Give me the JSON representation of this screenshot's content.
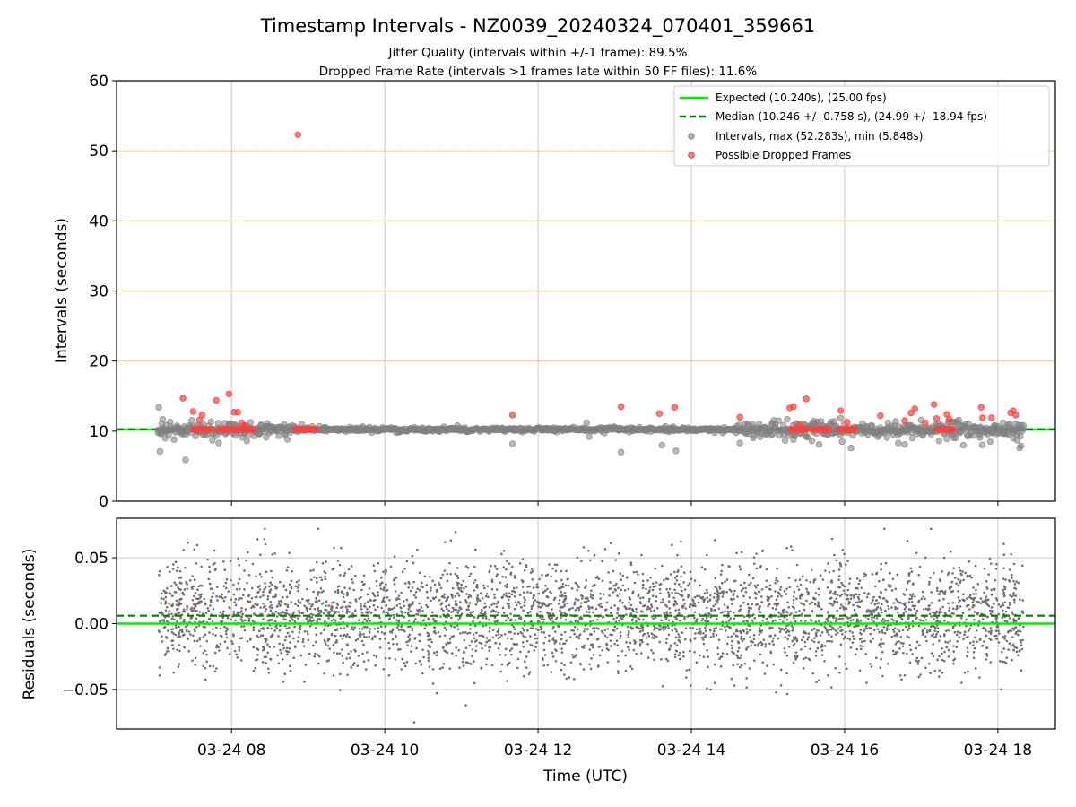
{
  "chart_data": {
    "type": "scatter",
    "title": "Timestamp Intervals - NZ0039_20240324_070401_359661",
    "subtitle_lines": [
      "Jitter Quality (intervals within +/-1 frame): 89.5%",
      "Dropped Frame Rate (intervals >1 frames late within 50 FF files): 11.6%"
    ],
    "xlabel": "Time (UTC)",
    "xlim": [
      "2024-03-24T06:30:00",
      "2024-03-24T18:45:00"
    ],
    "x_ticks": [
      {
        "value": "2024-03-24T08:00:00",
        "label": "03-24 08"
      },
      {
        "value": "2024-03-24T10:00:00",
        "label": "03-24 10"
      },
      {
        "value": "2024-03-24T12:00:00",
        "label": "03-24 12"
      },
      {
        "value": "2024-03-24T14:00:00",
        "label": "03-24 14"
      },
      {
        "value": "2024-03-24T16:00:00",
        "label": "03-24 16"
      },
      {
        "value": "2024-03-24T18:00:00",
        "label": "03-24 18"
      }
    ],
    "top_panel": {
      "ylabel": "Intervals (seconds)",
      "ylim": [
        0,
        60
      ],
      "y_ticks": [
        "0",
        "10",
        "20",
        "30",
        "40",
        "50",
        "60"
      ],
      "horizontal_grid_lines": [
        20,
        30,
        40,
        50
      ],
      "grid_color": "#ffd27f",
      "vertical_grid": true,
      "legend_position": "top-right",
      "legend": [
        {
          "label": "Expected (10.240s), (25.00 fps)",
          "style": "line",
          "color": "#00ee00"
        },
        {
          "label": "Median (10.246 +/- 0.758 s), (24.99 +/- 18.94 fps)",
          "style": "dashed",
          "color": "#008000"
        },
        {
          "label": "Intervals, max (52.283s), min (5.848s)",
          "style": "marker",
          "color": "#808080"
        },
        {
          "label": "Possible Dropped Frames",
          "style": "marker",
          "color": "#ff4040"
        }
      ],
      "expected": 10.24,
      "median": 10.246,
      "intervals_outliers": [
        [
          "2024-03-24T07:03:00",
          13.4
        ],
        [
          "2024-03-24T07:04:00",
          7.1
        ],
        [
          "2024-03-24T07:06:00",
          11.7
        ],
        [
          "2024-03-24T07:08:00",
          9.0
        ],
        [
          "2024-03-24T07:12:00",
          11.3
        ],
        [
          "2024-03-24T07:15:00",
          8.8
        ],
        [
          "2024-03-24T07:21:00",
          9.6
        ],
        [
          "2024-03-24T07:24:00",
          5.9
        ],
        [
          "2024-03-24T07:32:00",
          9.3
        ],
        [
          "2024-03-24T07:38:00",
          11.0
        ],
        [
          "2024-03-24T07:45:00",
          8.7
        ],
        [
          "2024-03-24T07:50:00",
          8.3
        ],
        [
          "2024-03-24T07:58:00",
          10.9
        ],
        [
          "2024-03-24T08:03:00",
          9.4
        ],
        [
          "2024-03-24T08:12:00",
          8.6
        ],
        [
          "2024-03-24T08:22:00",
          9.6
        ],
        [
          "2024-03-24T08:28:00",
          11.1
        ],
        [
          "2024-03-24T08:42:00",
          9.5
        ],
        [
          "2024-03-24T08:55:00",
          11.0
        ],
        [
          "2024-03-24T11:40:00",
          8.2
        ],
        [
          "2024-03-24T12:38:00",
          11.2
        ],
        [
          "2024-03-24T12:40:00",
          9.2
        ],
        [
          "2024-03-24T13:05:00",
          7.0
        ],
        [
          "2024-03-24T13:37:00",
          8.0
        ],
        [
          "2024-03-24T13:48:00",
          7.2
        ],
        [
          "2024-03-24T14:38:00",
          8.3
        ],
        [
          "2024-03-24T14:48:00",
          11.0
        ],
        [
          "2024-03-24T14:54:00",
          9.2
        ],
        [
          "2024-03-24T15:03:00",
          10.9
        ],
        [
          "2024-03-24T15:15:00",
          11.7
        ],
        [
          "2024-03-24T15:20:00",
          8.8
        ],
        [
          "2024-03-24T15:35:00",
          11.2
        ],
        [
          "2024-03-24T15:40:00",
          8.1
        ],
        [
          "2024-03-24T15:45:00",
          9.6
        ],
        [
          "2024-03-24T15:52:00",
          11.4
        ],
        [
          "2024-03-24T15:58:00",
          8.5
        ],
        [
          "2024-03-24T16:05:00",
          7.6
        ],
        [
          "2024-03-24T16:14:00",
          11.1
        ],
        [
          "2024-03-24T16:26:00",
          9.2
        ],
        [
          "2024-03-24T16:34:00",
          11.2
        ],
        [
          "2024-03-24T16:42:00",
          8.3
        ],
        [
          "2024-03-24T16:47:00",
          8.1
        ],
        [
          "2024-03-24T16:53:00",
          9.0
        ],
        [
          "2024-03-24T17:00:00",
          11.6
        ],
        [
          "2024-03-24T17:14:00",
          8.6
        ],
        [
          "2024-03-24T17:20:00",
          8.9
        ],
        [
          "2024-03-24T17:28:00",
          11.4
        ],
        [
          "2024-03-24T17:33:00",
          8.0
        ],
        [
          "2024-03-24T17:46:00",
          9.1
        ],
        [
          "2024-03-24T17:54:00",
          8.5
        ],
        [
          "2024-03-24T18:04:00",
          11.2
        ],
        [
          "2024-03-24T18:12:00",
          9.0
        ],
        [
          "2024-03-24T18:15:00",
          8.7
        ],
        [
          "2024-03-24T18:17:00",
          7.6
        ],
        [
          "2024-03-24T18:18:00",
          7.9
        ],
        [
          "2024-03-24T18:20:00",
          10.8
        ]
      ],
      "intervals_cluster_ranges": [
        {
          "start": "2024-03-24T07:02:00",
          "end": "2024-03-24T08:50:00",
          "spread": 1.2
        },
        {
          "start": "2024-03-24T08:50:00",
          "end": "2024-03-24T14:35:00",
          "spread": 0.35
        },
        {
          "start": "2024-03-24T14:35:00",
          "end": "2024-03-24T18:20:00",
          "spread": 1.3
        }
      ],
      "possible_dropped_frames": [
        [
          "2024-03-24T07:22:00",
          14.7
        ],
        [
          "2024-03-24T07:30:00",
          12.8
        ],
        [
          "2024-03-24T07:35:00",
          11.6
        ],
        [
          "2024-03-24T07:37:00",
          12.3
        ],
        [
          "2024-03-24T07:48:00",
          14.4
        ],
        [
          "2024-03-24T07:58:00",
          15.3
        ],
        [
          "2024-03-24T08:02:00",
          12.7
        ],
        [
          "2024-03-24T08:05:00",
          12.7
        ],
        [
          "2024-03-24T08:08:00",
          11.2
        ],
        [
          "2024-03-24T08:10:00",
          10.8
        ],
        [
          "2024-03-24T08:52:00",
          52.3
        ],
        [
          "2024-03-24T11:40:00",
          12.3
        ],
        [
          "2024-03-24T13:05:00",
          13.5
        ],
        [
          "2024-03-24T13:35:00",
          12.5
        ],
        [
          "2024-03-24T13:47:00",
          13.4
        ],
        [
          "2024-03-24T14:38:00",
          12.0
        ],
        [
          "2024-03-24T15:17:00",
          13.3
        ],
        [
          "2024-03-24T15:20:00",
          13.5
        ],
        [
          "2024-03-24T15:25:00",
          11.0
        ],
        [
          "2024-03-24T15:30:00",
          14.6
        ],
        [
          "2024-03-24T15:57:00",
          12.9
        ],
        [
          "2024-03-24T16:02:00",
          11.3
        ],
        [
          "2024-03-24T16:28:00",
          12.2
        ],
        [
          "2024-03-24T16:47:00",
          11.5
        ],
        [
          "2024-03-24T16:52:00",
          12.6
        ],
        [
          "2024-03-24T16:55:00",
          13.2
        ],
        [
          "2024-03-24T17:03:00",
          11.2
        ],
        [
          "2024-03-24T17:10:00",
          13.8
        ],
        [
          "2024-03-24T17:12:00",
          11.8
        ],
        [
          "2024-03-24T17:20:00",
          12.4
        ],
        [
          "2024-03-24T17:22:00",
          11.7
        ],
        [
          "2024-03-24T17:47:00",
          13.4
        ],
        [
          "2024-03-24T17:48:00",
          11.9
        ],
        [
          "2024-03-24T17:55:00",
          11.9
        ],
        [
          "2024-03-24T18:10:00",
          12.6
        ],
        [
          "2024-03-24T18:12:00",
          12.9
        ],
        [
          "2024-03-24T18:14:00",
          12.3
        ]
      ],
      "dropped_frame_clusters": [
        {
          "start": "2024-03-24T07:30:00",
          "end": "2024-03-24T07:44:00",
          "value": 10.24
        },
        {
          "start": "2024-03-24T07:50:00",
          "end": "2024-03-24T08:17:00",
          "value": 10.24
        },
        {
          "start": "2024-03-24T08:50:00",
          "end": "2024-03-24T09:06:00",
          "value": 10.24
        },
        {
          "start": "2024-03-24T15:18:00",
          "end": "2024-03-24T15:30:00",
          "value": 10.24
        },
        {
          "start": "2024-03-24T15:35:00",
          "end": "2024-03-24T15:48:00",
          "value": 10.24
        },
        {
          "start": "2024-03-24T15:56:00",
          "end": "2024-03-24T16:08:00",
          "value": 10.24
        },
        {
          "start": "2024-03-24T17:12:00",
          "end": "2024-03-24T17:25:00",
          "value": 10.24
        }
      ]
    },
    "bottom_panel": {
      "ylabel": "Residuals (seconds)",
      "ylim": [
        -0.08,
        0.08
      ],
      "y_ticks": [
        {
          "value": 0.05,
          "label": "0.05"
        },
        {
          "value": 0.0,
          "label": "0.00"
        },
        {
          "value": -0.05,
          "label": "−0.05"
        }
      ],
      "grid": true,
      "expected_line": 0.0,
      "median_line": 0.006,
      "residuals_start": "2024-03-24T07:03:00",
      "residuals_end": "2024-03-24T18:20:00",
      "residuals_mean": 0.006,
      "residuals_std": 0.02,
      "residuals_count": 3900,
      "residuals_range": [
        -0.075,
        0.072
      ]
    },
    "colors": {
      "expected": "#00ee00",
      "median": "#008000",
      "intervals": "#808080",
      "dropped": "#ff4040",
      "residual_points": "#707070",
      "grid": "#b0b0b0"
    }
  }
}
